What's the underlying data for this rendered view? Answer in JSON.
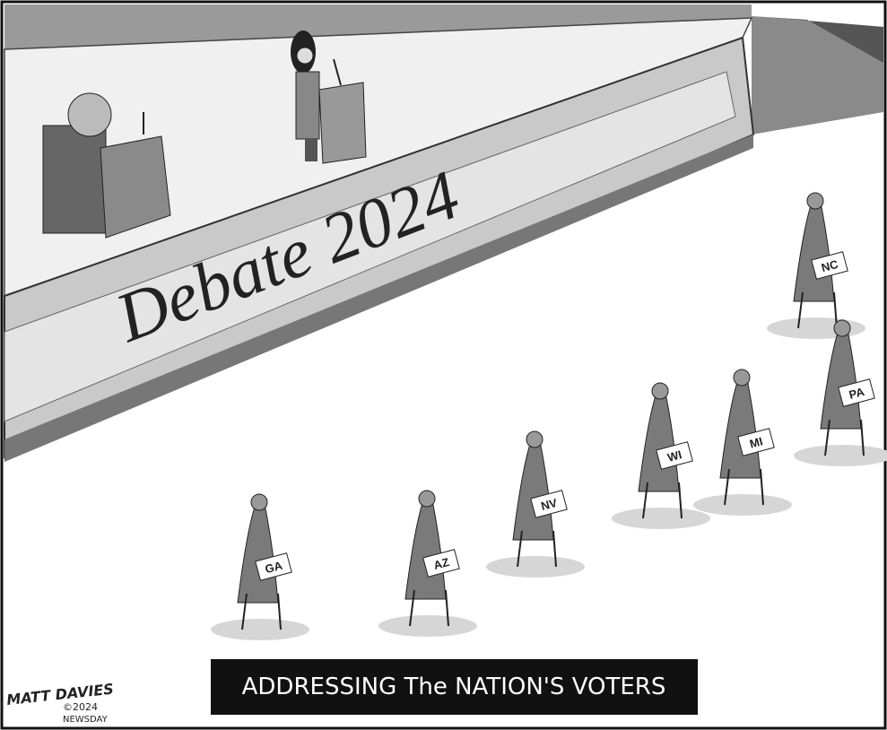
{
  "stage": {
    "banner": "Debate 2024"
  },
  "voters": [
    {
      "label": "NC"
    },
    {
      "label": "PA"
    },
    {
      "label": "MI"
    },
    {
      "label": "WI"
    },
    {
      "label": "NV"
    },
    {
      "label": "AZ"
    },
    {
      "label": "GA"
    }
  ],
  "caption": "ADDRESSING The NATION'S VOTERS",
  "signature": {
    "artist": "MATT DAVIES",
    "copyright": "©2024",
    "publisher": "NEWSDAY"
  }
}
